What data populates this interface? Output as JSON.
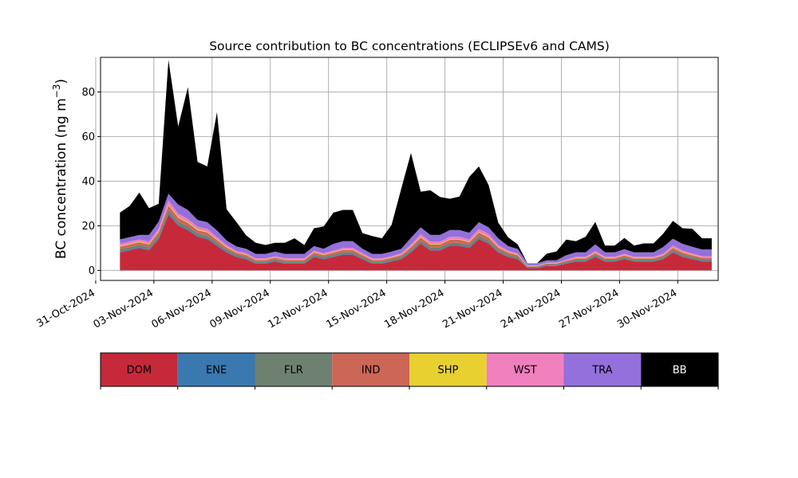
{
  "chart_data": {
    "type": "area",
    "stacked": true,
    "title": "Source contribution to BC concentrations (ECLIPSEv6 and CAMS)",
    "ylabel": "BC concentration (ng m",
    "ylabel_superscript": "−3",
    "ylabel_suffix": ")",
    "xlabel": "",
    "grid": true,
    "ylim": [
      -4.5,
      95.5
    ],
    "yticks": [
      0,
      20,
      40,
      60,
      80
    ],
    "xlim": [
      "2024-10-31T06:00",
      "2024-12-02T02:00"
    ],
    "xticks": [
      "2024-10-31",
      "2024-11-03",
      "2024-11-06",
      "2024-11-09",
      "2024-11-12",
      "2024-11-15",
      "2024-11-18",
      "2024-11-21",
      "2024-11-24",
      "2024-11-27",
      "2024-11-30"
    ],
    "xtick_labels": [
      "31-Oct-2024",
      "03-Nov-2024",
      "06-Nov-2024",
      "09-Nov-2024",
      "12-Nov-2024",
      "15-Nov-2024",
      "18-Nov-2024",
      "21-Nov-2024",
      "24-Nov-2024",
      "27-Nov-2024",
      "30-Nov-2024"
    ],
    "x": [
      "2024-11-01T06:00",
      "2024-11-01T18:00",
      "2024-11-02T06:00",
      "2024-11-02T18:00",
      "2024-11-03T06:00",
      "2024-11-03T18:00",
      "2024-11-04T06:00",
      "2024-11-04T18:00",
      "2024-11-05T06:00",
      "2024-11-05T18:00",
      "2024-11-06T06:00",
      "2024-11-06T18:00",
      "2024-11-07T06:00",
      "2024-11-07T18:00",
      "2024-11-08T06:00",
      "2024-11-08T18:00",
      "2024-11-09T06:00",
      "2024-11-09T18:00",
      "2024-11-10T06:00",
      "2024-11-10T18:00",
      "2024-11-11T06:00",
      "2024-11-11T18:00",
      "2024-11-12T06:00",
      "2024-11-12T18:00",
      "2024-11-13T06:00",
      "2024-11-13T18:00",
      "2024-11-14T06:00",
      "2024-11-14T18:00",
      "2024-11-15T06:00",
      "2024-11-15T18:00",
      "2024-11-16T06:00",
      "2024-11-16T18:00",
      "2024-11-17T06:00",
      "2024-11-17T18:00",
      "2024-11-18T06:00",
      "2024-11-18T18:00",
      "2024-11-19T06:00",
      "2024-11-19T18:00",
      "2024-11-20T06:00",
      "2024-11-20T18:00",
      "2024-11-21T06:00",
      "2024-11-21T18:00",
      "2024-11-22T06:00",
      "2024-11-22T18:00",
      "2024-11-23T06:00",
      "2024-11-23T18:00",
      "2024-11-24T06:00",
      "2024-11-24T18:00",
      "2024-11-25T06:00",
      "2024-11-25T18:00",
      "2024-11-26T06:00",
      "2024-11-26T18:00",
      "2024-11-27T06:00",
      "2024-11-27T18:00",
      "2024-11-28T06:00",
      "2024-11-28T18:00",
      "2024-11-29T06:00",
      "2024-11-29T18:00",
      "2024-11-30T06:00",
      "2024-11-30T18:00",
      "2024-12-01T06:00",
      "2024-12-01T18:00"
    ],
    "series": [
      {
        "name": "DOM",
        "color": "#c62a3a",
        "values": [
          8,
          9,
          10,
          9,
          14,
          25,
          20,
          18,
          15,
          14,
          11,
          8,
          6,
          5,
          3,
          3,
          4,
          3,
          3,
          3,
          6,
          5,
          6,
          7,
          7,
          5,
          3,
          3,
          4,
          5,
          8,
          12,
          9,
          9,
          11,
          11,
          10,
          14,
          12,
          8,
          6,
          5,
          1,
          1,
          2,
          2,
          3,
          4,
          4,
          6,
          4,
          4,
          5,
          4,
          4,
          4,
          5,
          8,
          6,
          5,
          4,
          4
        ]
      },
      {
        "name": "ENE",
        "color": "#3a78b0",
        "values": [
          0.4,
          0.4,
          0.4,
          0.4,
          0.5,
          0.6,
          0.5,
          0.5,
          0.5,
          0.5,
          0.4,
          0.4,
          0.3,
          0.3,
          0.3,
          0.3,
          0.3,
          0.3,
          0.3,
          0.3,
          0.3,
          0.3,
          0.3,
          0.3,
          0.3,
          0.3,
          0.3,
          0.3,
          0.3,
          0.3,
          0.4,
          0.4,
          0.4,
          0.4,
          0.4,
          0.4,
          0.4,
          0.4,
          0.4,
          0.3,
          0.3,
          0.3,
          0.2,
          0.2,
          0.2,
          0.2,
          0.2,
          0.2,
          0.2,
          0.3,
          0.2,
          0.2,
          0.3,
          0.2,
          0.2,
          0.2,
          0.3,
          0.3,
          0.3,
          0.3,
          0.3,
          0.3
        ]
      },
      {
        "name": "FLR",
        "color": "#6e8070",
        "values": [
          1,
          1,
          1,
          1,
          1.2,
          1.5,
          1.3,
          1.2,
          1.1,
          1.1,
          1,
          0.9,
          0.8,
          0.8,
          0.7,
          0.7,
          0.7,
          0.7,
          0.7,
          0.7,
          0.8,
          0.8,
          0.8,
          0.8,
          0.8,
          0.8,
          0.7,
          0.7,
          0.7,
          0.8,
          0.9,
          1,
          1,
          1,
          1,
          1,
          1,
          1.1,
          1,
          0.9,
          0.8,
          0.7,
          0.4,
          0.4,
          0.5,
          0.5,
          0.6,
          0.6,
          0.6,
          0.7,
          0.6,
          0.6,
          0.7,
          0.6,
          0.6,
          0.6,
          0.7,
          0.8,
          0.8,
          0.7,
          0.7,
          0.7
        ]
      },
      {
        "name": "IND",
        "color": "#cc6657",
        "values": [
          1.2,
          1.2,
          1.2,
          1.2,
          1.5,
          2,
          1.8,
          1.6,
          1.4,
          1.4,
          1.2,
          1,
          0.8,
          0.8,
          0.7,
          0.7,
          0.7,
          0.7,
          0.7,
          0.7,
          0.9,
          0.8,
          0.9,
          1,
          1,
          0.8,
          0.7,
          0.7,
          0.7,
          0.8,
          1.1,
          1.4,
          1.2,
          1.2,
          1.3,
          1.3,
          1.2,
          1.5,
          1.4,
          1.1,
          0.9,
          0.8,
          0.3,
          0.3,
          0.4,
          0.4,
          0.5,
          0.6,
          0.6,
          0.8,
          0.6,
          0.6,
          0.7,
          0.6,
          0.6,
          0.6,
          0.7,
          1,
          0.9,
          0.8,
          0.7,
          0.7
        ]
      },
      {
        "name": "SHP",
        "color": "#e7d030",
        "values": [
          0.3,
          0.3,
          0.3,
          0.3,
          0.4,
          0.5,
          0.4,
          0.4,
          0.4,
          0.4,
          0.3,
          0.3,
          0.2,
          0.2,
          0.2,
          0.2,
          0.2,
          0.2,
          0.2,
          0.2,
          0.2,
          0.2,
          0.2,
          0.2,
          0.2,
          0.2,
          0.2,
          0.2,
          0.2,
          0.2,
          0.3,
          0.3,
          0.3,
          0.3,
          0.3,
          0.3,
          0.3,
          0.3,
          0.3,
          0.2,
          0.2,
          0.2,
          0.1,
          0.1,
          0.1,
          0.1,
          0.1,
          0.2,
          0.2,
          0.2,
          0.2,
          0.2,
          0.2,
          0.2,
          0.2,
          0.2,
          0.2,
          0.2,
          0.2,
          0.2,
          0.2,
          0.2
        ]
      },
      {
        "name": "WST",
        "color": "#f07fbd",
        "values": [
          1,
          1,
          1,
          1,
          1.3,
          1.8,
          1.5,
          1.4,
          1.2,
          1.2,
          1,
          0.8,
          0.6,
          0.6,
          0.5,
          0.5,
          0.5,
          0.5,
          0.5,
          0.5,
          0.7,
          0.6,
          0.7,
          0.8,
          0.8,
          0.6,
          0.5,
          0.5,
          0.5,
          0.6,
          0.9,
          1.2,
          1,
          1,
          1.1,
          1.1,
          1,
          1.3,
          1.2,
          0.9,
          0.7,
          0.6,
          0.2,
          0.2,
          0.3,
          0.3,
          0.4,
          0.5,
          0.5,
          0.7,
          0.5,
          0.5,
          0.6,
          0.5,
          0.5,
          0.5,
          0.6,
          0.9,
          0.7,
          0.6,
          0.5,
          0.5
        ]
      },
      {
        "name": "TRA",
        "color": "#9370db",
        "values": [
          2,
          2,
          2,
          3,
          3,
          3,
          4,
          4,
          3,
          3,
          3,
          2,
          2,
          2,
          2,
          2,
          2,
          2,
          2,
          2,
          2,
          2,
          3,
          3,
          3,
          2,
          2,
          2,
          2,
          2,
          3,
          3,
          3,
          3,
          3,
          3,
          3,
          3,
          3,
          3,
          2,
          2,
          1,
          1,
          1,
          1,
          2,
          2,
          2,
          3,
          2,
          2,
          2,
          2,
          2,
          2,
          3,
          3,
          3,
          3,
          3,
          3
        ]
      },
      {
        "name": "BB",
        "color": "#000000",
        "values": [
          12,
          14,
          19,
          12,
          8,
          60,
          35,
          55,
          26,
          25,
          53,
          14,
          11,
          6,
          5,
          4,
          4,
          5,
          7,
          4,
          8,
          10,
          14,
          14,
          14,
          7,
          8,
          7,
          12,
          27,
          38,
          16,
          20,
          17,
          14,
          15,
          25,
          25,
          19,
          7,
          4,
          2,
          0,
          0,
          3,
          4,
          7,
          5,
          7,
          10,
          3,
          3,
          5,
          3,
          4,
          4,
          6,
          8,
          7,
          8,
          5,
          5
        ]
      }
    ]
  }
}
